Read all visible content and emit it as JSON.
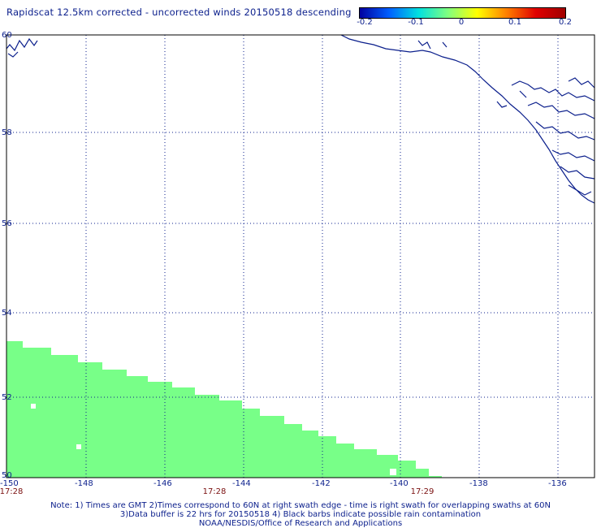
{
  "title": "Rapidscat 12.5km corrected - uncorrected winds 20150518 descending",
  "colorbar": {
    "labels": [
      "-0.2",
      "-0.1",
      "0",
      "0.1",
      "0.2"
    ],
    "colors": [
      "#0000a0",
      "#0060ff",
      "#00e0e0",
      "#80ff80",
      "#ffff00",
      "#ff8000",
      "#e00000",
      "#a00000"
    ]
  },
  "axes": {
    "lat_ticks": [
      "60",
      "58",
      "56",
      "54",
      "52",
      "50"
    ],
    "lon_ticks": [
      "-150",
      "-148",
      "-146",
      "-144",
      "-142",
      "-140",
      "-138",
      "-136"
    ]
  },
  "times": [
    "17:28",
    "17:28",
    "17:29"
  ],
  "notes": {
    "line1": "Note: 1) Times are GMT 2)Times correspond to 60N at right swath edge - time is right swath for overlapping swaths at 60N",
    "line2": "3)Data buffer is 22 hrs for 20150518 4) Black barbs indicate possible rain contamination",
    "line3": "NOAA/NESDIS/Office of Research and Applications"
  },
  "swath_color": "#78ff88",
  "coast_color": "#0b1f8c"
}
